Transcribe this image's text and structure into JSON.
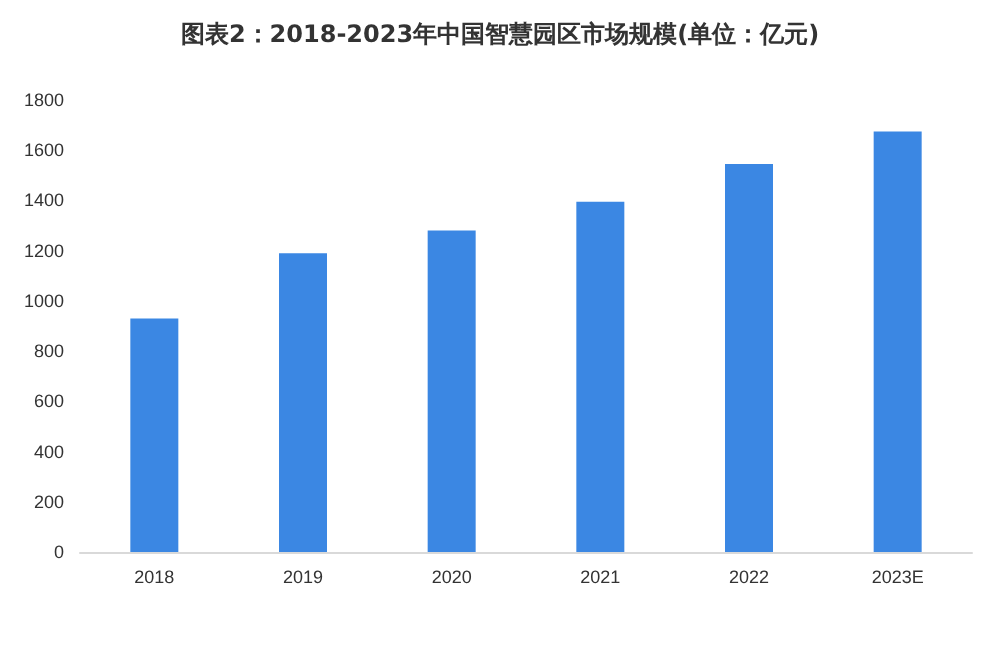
{
  "chart_data": {
    "type": "bar",
    "title": "图表2：2018-2023年中国智慧园区市场规模(单位：亿元)",
    "categories": [
      "2018",
      "2019",
      "2020",
      "2021",
      "2022",
      "2023E"
    ],
    "values": [
      930,
      1190,
      1280,
      1395,
      1545,
      1675
    ],
    "color": "#3b87e3",
    "ylim": [
      0,
      1800
    ],
    "yticks": [
      0,
      200,
      400,
      600,
      800,
      1000,
      1200,
      1400,
      1600,
      1800
    ],
    "grid": false
  }
}
